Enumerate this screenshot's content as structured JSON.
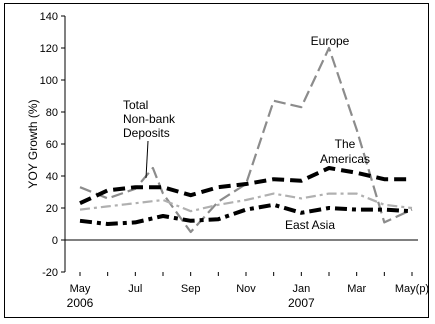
{
  "chart_data": {
    "type": "line",
    "ylabel": "YOY Growth (%)",
    "ylim": [
      -20,
      140
    ],
    "yticks": [
      -20,
      0,
      20,
      40,
      60,
      80,
      100,
      120,
      140
    ],
    "x": [
      "2006-05",
      "2006-06",
      "2006-07",
      "2006-08",
      "2006-09",
      "2006-10",
      "2006-11",
      "2006-12",
      "2007-01",
      "2007-02",
      "2007-03",
      "2007-04",
      "2007-05"
    ],
    "xtick_labels": [
      {
        "x": "2006-05",
        "label": "May",
        "sublabel": "2006"
      },
      {
        "x": "2006-07",
        "label": "Jul",
        "sublabel": ""
      },
      {
        "x": "2006-09",
        "label": "Sep",
        "sublabel": ""
      },
      {
        "x": "2006-11",
        "label": "Nov",
        "sublabel": ""
      },
      {
        "x": "2007-01",
        "label": "Jan",
        "sublabel": "2007"
      },
      {
        "x": "2007-03",
        "label": "Mar",
        "sublabel": ""
      },
      {
        "x": "2007-05",
        "label": "May(p)",
        "sublabel": ""
      }
    ],
    "grid": false,
    "legend": "none",
    "series": [
      {
        "name": "Europe",
        "color": "#8c8c8c",
        "style": "long-dash",
        "points": [
          {
            "x": "2006-05",
            "y": 33
          },
          {
            "x": "2006-06",
            "y": 26
          },
          {
            "x": "2006-07",
            "y": 32
          },
          {
            "x": "2006-07-20",
            "y": 45
          },
          {
            "x": "2006-08",
            "y": 29
          },
          {
            "x": "2006-09",
            "y": 5
          },
          {
            "x": "2006-10",
            "y": 24
          },
          {
            "x": "2006-11",
            "y": 35
          },
          {
            "x": "2006-12",
            "y": 87
          },
          {
            "x": "2007-01",
            "y": 83
          },
          {
            "x": "2007-02",
            "y": 120
          },
          {
            "x": "2007-03",
            "y": 69
          },
          {
            "x": "2007-04",
            "y": 11
          },
          {
            "x": "2007-05",
            "y": 19
          }
        ]
      },
      {
        "name": "Total Non-bank Deposits",
        "color": "#b0b0b0",
        "style": "dash-dot",
        "points": [
          {
            "x": "2006-05",
            "y": 19
          },
          {
            "x": "2006-06",
            "y": 21
          },
          {
            "x": "2006-07",
            "y": 23
          },
          {
            "x": "2006-08",
            "y": 25
          },
          {
            "x": "2006-09",
            "y": 18
          },
          {
            "x": "2006-10",
            "y": 22
          },
          {
            "x": "2006-11",
            "y": 25
          },
          {
            "x": "2006-12",
            "y": 29
          },
          {
            "x": "2007-01",
            "y": 26
          },
          {
            "x": "2007-02",
            "y": 29
          },
          {
            "x": "2007-03",
            "y": 29
          },
          {
            "x": "2007-04",
            "y": 22
          },
          {
            "x": "2007-05",
            "y": 20
          }
        ]
      },
      {
        "name": "The Americas",
        "color": "#000000",
        "style": "bold-dash",
        "points": [
          {
            "x": "2006-05",
            "y": 23
          },
          {
            "x": "2006-06",
            "y": 31
          },
          {
            "x": "2006-07",
            "y": 33
          },
          {
            "x": "2006-08",
            "y": 33
          },
          {
            "x": "2006-09",
            "y": 28
          },
          {
            "x": "2006-10",
            "y": 33
          },
          {
            "x": "2006-11",
            "y": 35
          },
          {
            "x": "2006-12",
            "y": 38
          },
          {
            "x": "2007-01",
            "y": 37
          },
          {
            "x": "2007-02",
            "y": 45
          },
          {
            "x": "2007-03",
            "y": 42
          },
          {
            "x": "2007-04",
            "y": 38
          },
          {
            "x": "2007-05",
            "y": 38
          }
        ]
      },
      {
        "name": "East Asia",
        "color": "#000000",
        "style": "bold-dash-dot",
        "points": [
          {
            "x": "2006-05",
            "y": 12
          },
          {
            "x": "2006-06",
            "y": 10
          },
          {
            "x": "2006-07",
            "y": 11
          },
          {
            "x": "2006-08",
            "y": 15
          },
          {
            "x": "2006-09",
            "y": 12
          },
          {
            "x": "2006-10",
            "y": 13
          },
          {
            "x": "2006-11",
            "y": 19
          },
          {
            "x": "2006-12",
            "y": 22
          },
          {
            "x": "2007-01",
            "y": 17
          },
          {
            "x": "2007-02",
            "y": 20
          },
          {
            "x": "2007-03",
            "y": 19
          },
          {
            "x": "2007-04",
            "y": 19
          },
          {
            "x": "2007-05",
            "y": 18
          }
        ]
      }
    ],
    "annotations": [
      {
        "text": "Europe",
        "series": "Europe"
      },
      {
        "text": "The Americas",
        "series": "The Americas"
      },
      {
        "text": "East Asia",
        "series": "East Asia"
      },
      {
        "text": "Total Non-bank Deposits",
        "series": "Total Non-bank Deposits"
      }
    ]
  }
}
